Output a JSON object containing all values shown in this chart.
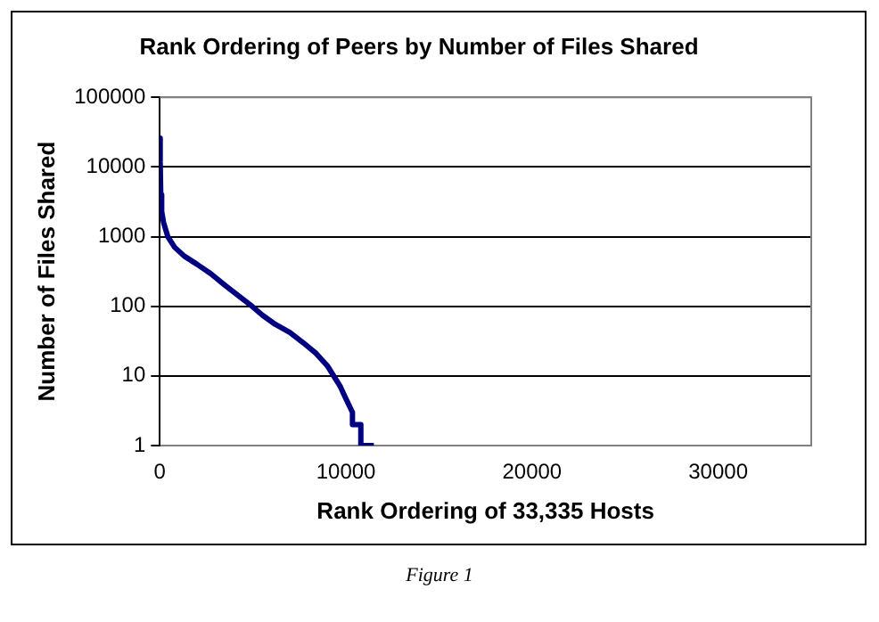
{
  "chart_data": {
    "type": "line",
    "title": "Rank Ordering of Peers by Number of Files Shared",
    "xlabel": "Rank Ordering of 33,335 Hosts",
    "ylabel": "Number of Files Shared",
    "annotations": [
      "Figure 1"
    ],
    "series": [
      {
        "color": "#000080",
        "x": [
          0,
          20,
          50,
          100,
          200,
          430,
          800,
          1310,
          2000,
          2730,
          3500,
          4100,
          4860,
          5500,
          6200,
          6990,
          7700,
          8400,
          9000,
          9290,
          9700,
          10000,
          10350,
          10350,
          10800,
          10800,
          11500
        ],
        "values": [
          26000,
          12000,
          4000,
          2300,
          1600,
          1000,
          700,
          525,
          400,
          295,
          200,
          150,
          105,
          75,
          55,
          42,
          30,
          21,
          14,
          10.5,
          7,
          4.7,
          3,
          2,
          2,
          1,
          1
        ]
      }
    ],
    "xlim": [
      0,
      35000
    ],
    "xticks": [
      0,
      10000,
      20000,
      30000
    ],
    "ylim": [
      1,
      100000
    ],
    "yticks": [
      1,
      10,
      100,
      1000,
      10000,
      100000
    ],
    "log": "y",
    "grid": "y",
    "legend": false,
    "marker": "none",
    "line_style": "solid"
  }
}
